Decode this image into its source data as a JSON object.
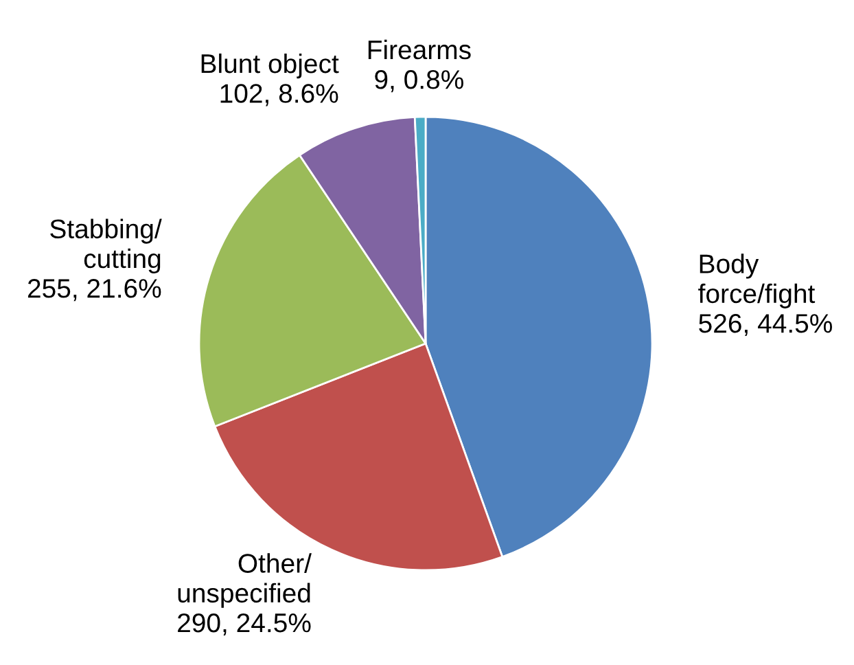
{
  "chart_data": {
    "type": "pie",
    "categories": [
      "Body\nforce/fight",
      "Other/\nunspecified",
      "Stabbing/\ncutting",
      "Blunt object",
      "Firearms"
    ],
    "values": [
      526,
      290,
      255,
      102,
      9
    ],
    "value_labels": [
      "526, 44.5%",
      "290, 24.5%",
      "255, 21.6%",
      "102, 8.6%",
      "9, 0.8%"
    ],
    "colors": [
      "#4f81bd",
      "#c0504d",
      "#9bbb59",
      "#8064a2",
      "#4bacc6"
    ],
    "legend": false
  }
}
